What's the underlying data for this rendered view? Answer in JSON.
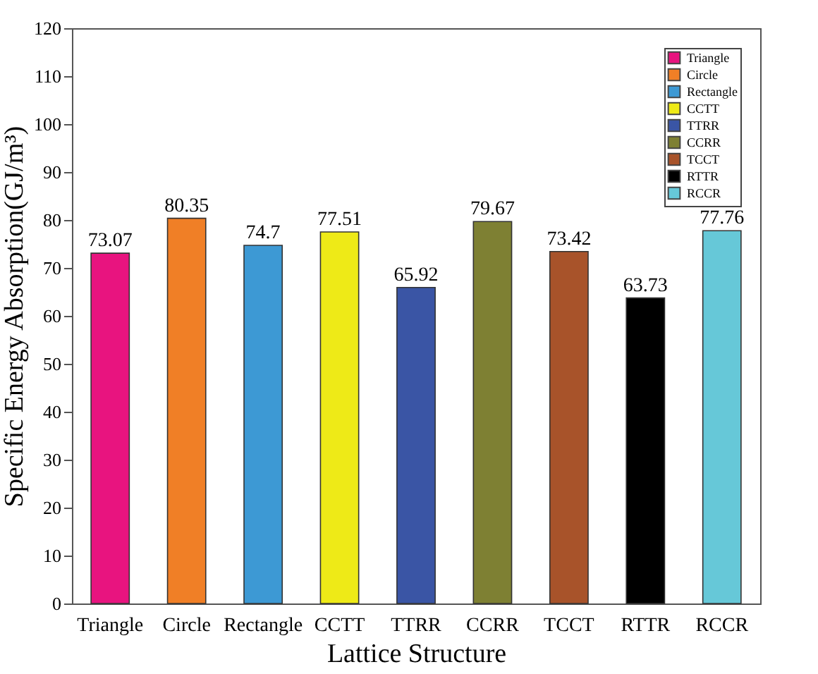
{
  "chart_data": {
    "type": "bar",
    "xlabel": "Lattice Structure",
    "ylabel": "Specific Energy Absorption(GJ/m³)",
    "categories": [
      "Triangle",
      "Circle",
      "Rectangle",
      "CCTT",
      "TTRR",
      "CCRR",
      "TCCT",
      "RTTR",
      "RCCR"
    ],
    "stacked": true,
    "series": [
      {
        "name": "Triangle",
        "color": "#e8147f",
        "values": [
          73.07,
          null,
          null,
          null,
          null,
          null,
          null,
          null,
          null
        ]
      },
      {
        "name": "Circle",
        "color": "#f07f26",
        "values": [
          null,
          80.35,
          null,
          null,
          null,
          null,
          null,
          null,
          null
        ]
      },
      {
        "name": "Rectangle",
        "color": "#3d99d4",
        "values": [
          null,
          null,
          74.7,
          null,
          null,
          null,
          null,
          null,
          null
        ]
      },
      {
        "name": "CCTT",
        "color": "#eeea17",
        "values": [
          null,
          null,
          null,
          77.51,
          null,
          null,
          null,
          null,
          null
        ]
      },
      {
        "name": "TTRR",
        "color": "#3a55a5",
        "values": [
          null,
          null,
          null,
          null,
          65.92,
          null,
          null,
          null,
          null
        ]
      },
      {
        "name": "CCRR",
        "color": "#7e8033",
        "values": [
          null,
          null,
          null,
          null,
          null,
          79.67,
          null,
          null,
          null
        ]
      },
      {
        "name": "TCCT",
        "color": "#a8532a",
        "values": [
          null,
          null,
          null,
          null,
          null,
          null,
          73.42,
          null,
          null
        ]
      },
      {
        "name": "RTTR",
        "color": "#000000",
        "values": [
          null,
          null,
          null,
          null,
          null,
          null,
          null,
          63.73,
          null
        ]
      },
      {
        "name": "RCCR",
        "color": "#66c8d8",
        "values": [
          null,
          null,
          null,
          null,
          null,
          null,
          null,
          null,
          77.76
        ]
      }
    ],
    "ylim": [
      0,
      120
    ],
    "yticks": [
      0,
      10,
      20,
      30,
      40,
      50,
      60,
      70,
      80,
      90,
      100,
      110,
      120
    ],
    "data_labels": true,
    "legend": "top right",
    "grid": false
  }
}
